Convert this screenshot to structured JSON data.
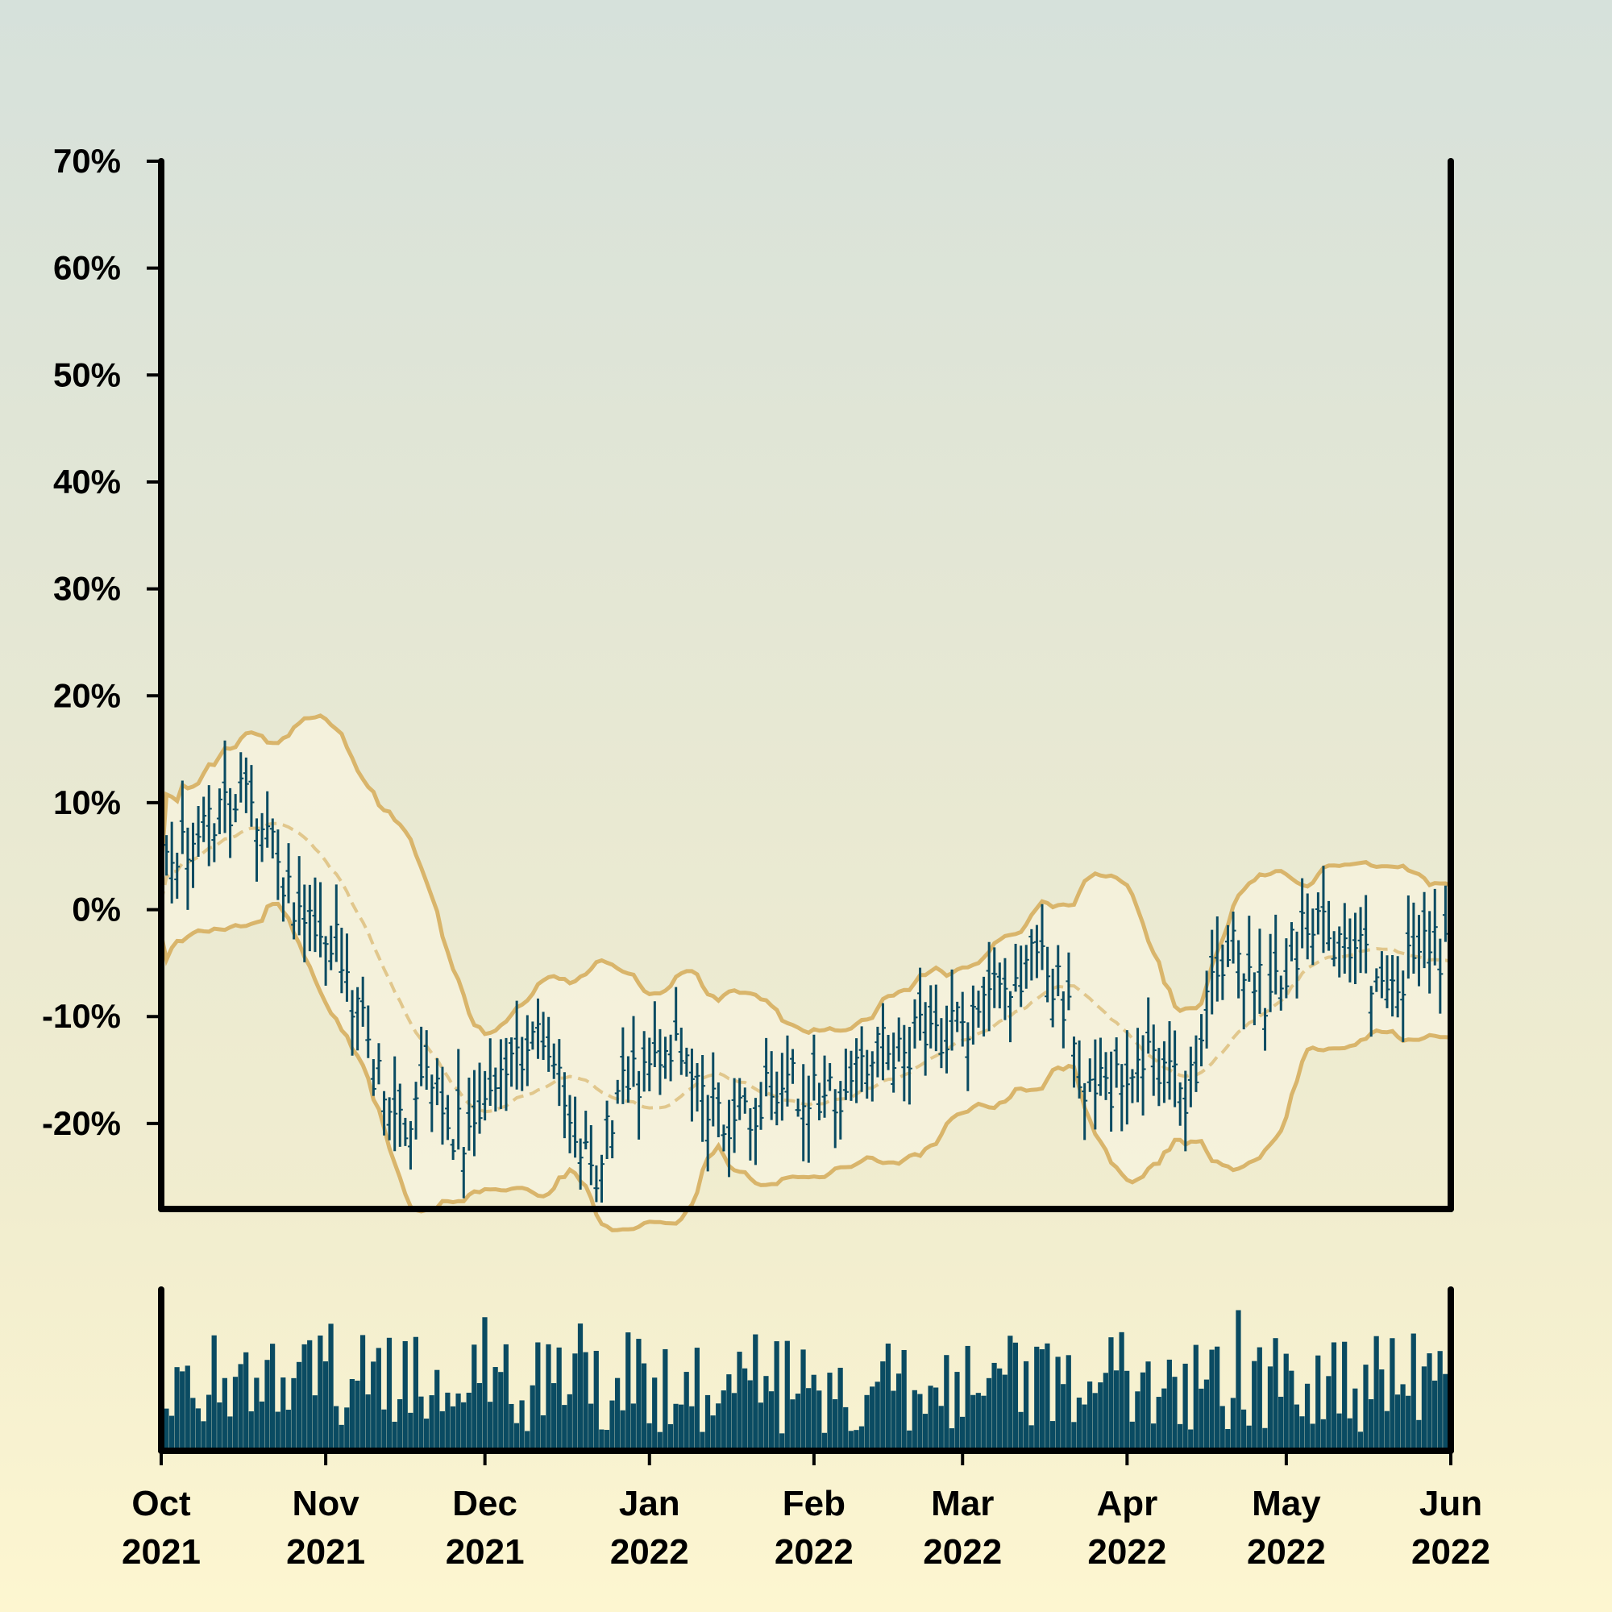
{
  "chart_data": {
    "type": "ohlc",
    "x_range": [
      "2021-10-01",
      "2022-06-01"
    ],
    "ylim": [
      -28,
      70
    ],
    "y_ticks": [
      "70%",
      "60%",
      "50%",
      "40%",
      "30%",
      "20%",
      "10%",
      "0%",
      "-10%",
      "-20%"
    ],
    "y_tick_values": [
      70,
      60,
      50,
      40,
      30,
      20,
      10,
      0,
      -10,
      -20
    ],
    "x_ticks": [
      {
        "date": "2021-10-01",
        "month": "Oct",
        "year": "2021"
      },
      {
        "date": "2021-11-01",
        "month": "Nov",
        "year": "2021"
      },
      {
        "date": "2021-12-01",
        "month": "Dec",
        "year": "2021"
      },
      {
        "date": "2022-01-01",
        "month": "Jan",
        "year": "2022"
      },
      {
        "date": "2022-02-01",
        "month": "Feb",
        "year": "2022"
      },
      {
        "date": "2022-03-01",
        "month": "Mar",
        "year": "2022"
      },
      {
        "date": "2022-04-01",
        "month": "Apr",
        "year": "2022"
      },
      {
        "date": "2022-05-01",
        "month": "May",
        "year": "2022"
      },
      {
        "date": "2022-06-01",
        "month": "Jun",
        "year": "2022"
      }
    ],
    "price_anchors": [
      {
        "date": "2021-10-01",
        "value": 3
      },
      {
        "date": "2021-10-05",
        "value": 6
      },
      {
        "date": "2021-10-12",
        "value": 9
      },
      {
        "date": "2021-10-15",
        "value": 11
      },
      {
        "date": "2021-10-22",
        "value": 5
      },
      {
        "date": "2021-10-29",
        "value": -2
      },
      {
        "date": "2021-11-03",
        "value": -3
      },
      {
        "date": "2021-11-10",
        "value": -15
      },
      {
        "date": "2021-11-15",
        "value": -20
      },
      {
        "date": "2021-11-20",
        "value": -17
      },
      {
        "date": "2021-11-28",
        "value": -22
      },
      {
        "date": "2021-12-05",
        "value": -14
      },
      {
        "date": "2021-12-12",
        "value": -11
      },
      {
        "date": "2021-12-16",
        "value": -19
      },
      {
        "date": "2021-12-22",
        "value": -24
      },
      {
        "date": "2021-12-28",
        "value": -16
      },
      {
        "date": "2022-01-05",
        "value": -13
      },
      {
        "date": "2022-01-12",
        "value": -18
      },
      {
        "date": "2022-01-18",
        "value": -20
      },
      {
        "date": "2022-01-25",
        "value": -16
      },
      {
        "date": "2022-02-05",
        "value": -17
      },
      {
        "date": "2022-02-15",
        "value": -13
      },
      {
        "date": "2022-02-22",
        "value": -12
      },
      {
        "date": "2022-03-01",
        "value": -11
      },
      {
        "date": "2022-03-10",
        "value": -6
      },
      {
        "date": "2022-03-15",
        "value": -4
      },
      {
        "date": "2022-03-20",
        "value": -8
      },
      {
        "date": "2022-03-24",
        "value": -18
      },
      {
        "date": "2022-03-31",
        "value": -16
      },
      {
        "date": "2022-04-07",
        "value": -14
      },
      {
        "date": "2022-04-12",
        "value": -18
      },
      {
        "date": "2022-04-18",
        "value": -5
      },
      {
        "date": "2022-04-22",
        "value": -4
      },
      {
        "date": "2022-04-28",
        "value": -9
      },
      {
        "date": "2022-05-04",
        "value": -2
      },
      {
        "date": "2022-05-14",
        "value": -3
      },
      {
        "date": "2022-05-20",
        "value": -8
      },
      {
        "date": "2022-05-26",
        "value": -3
      },
      {
        "date": "2022-06-01",
        "value": -5
      }
    ],
    "volume_range": [
      0,
      100
    ],
    "colors": {
      "bar": "#0a4b62",
      "band": "#d9b56b",
      "band_fill": "#f6f2dd",
      "axis": "#000000"
    }
  }
}
